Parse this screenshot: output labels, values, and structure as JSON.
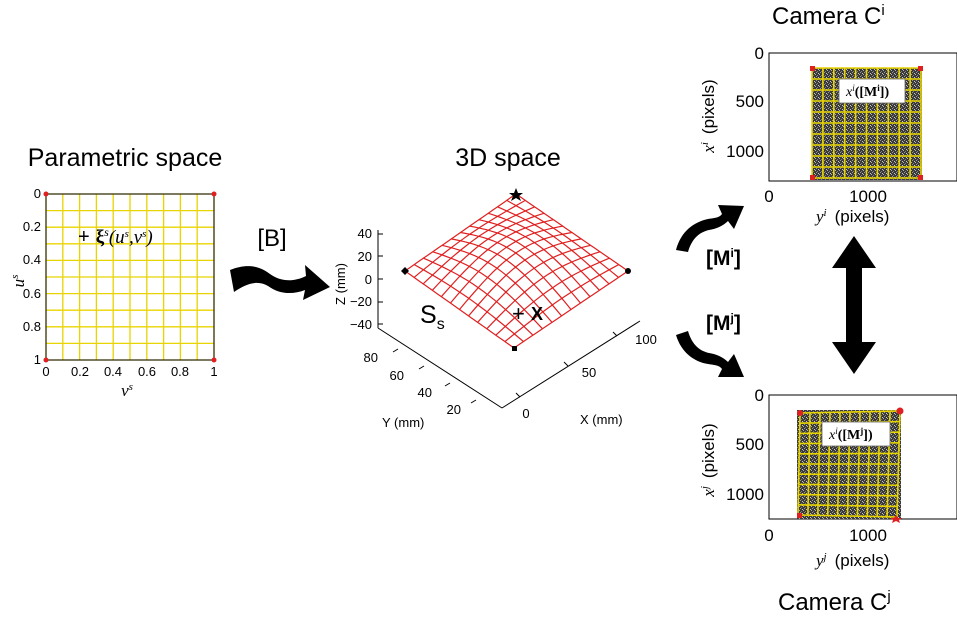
{
  "colors": {
    "grid_yellow": "#e8d400",
    "mesh_red": "#e02020",
    "marker_red": "#e02020",
    "arrow_black": "#000000",
    "camera_bg": "#1a1a1a"
  },
  "titles": {
    "parametric": "Parametric space",
    "space3d": "3D space",
    "camera_i_main": "Camera C",
    "camera_i_sup": "i",
    "camera_j_main": "Camera C",
    "camera_j_sup": "j"
  },
  "parametric": {
    "u_ticks": [
      "0",
      "0.2",
      "0.4",
      "0.6",
      "0.8",
      "1"
    ],
    "v_ticks": [
      "0",
      "0.2",
      "0.4",
      "0.6",
      "0.8",
      "1"
    ],
    "u_label": "u",
    "u_label_sup": "s",
    "v_label": "v",
    "v_label_sup": "s",
    "point_marker": "+",
    "point_xi": "ξ",
    "point_xi_sup": "s",
    "point_args_open": "(u",
    "point_args_mid": ",v",
    "point_args_close": ")",
    "point_args_sup": "s"
  },
  "transforms": {
    "B": "[B]",
    "Mi_main": "[M",
    "Mi_sup": "i",
    "Mi_close": "]",
    "Mj_main": "[M",
    "Mj_sup": "j",
    "Mj_close": "]"
  },
  "space3d": {
    "z_ticks": [
      "40",
      "20",
      "0",
      "−20",
      "−40"
    ],
    "z_label": "Z (mm)",
    "y_ticks": [
      "80",
      "60",
      "40",
      "20"
    ],
    "y_label": "Y (mm)",
    "x_ticks": [
      "0",
      "50",
      "100"
    ],
    "x_label": "X (mm)",
    "surface_main": "S",
    "surface_sub": "s",
    "point_marker": "+",
    "point_label": "X"
  },
  "camera_i": {
    "y_ticks": [
      "0",
      "500",
      "1000"
    ],
    "x_ticks": [
      "0",
      "1000"
    ],
    "ylabel_var": "x",
    "ylabel_sup": "i",
    "ylabel_unit": "(pixels)",
    "xlabel_var": "y",
    "xlabel_sup": "i",
    "xlabel_unit": "(pixels)",
    "inset_var": "x",
    "inset_var_sup": "i",
    "inset_open": "([M",
    "inset_M_sup": "i",
    "inset_close": "])"
  },
  "camera_j": {
    "y_ticks": [
      "0",
      "500",
      "1000"
    ],
    "x_ticks": [
      "0",
      "1000"
    ],
    "ylabel_var": "x",
    "ylabel_sup": "j",
    "ylabel_unit": "(pixels)",
    "xlabel_var": "y",
    "xlabel_sup": "j",
    "xlabel_unit": "(pixels)",
    "inset_var": "x",
    "inset_var_sup": "i",
    "inset_open": "([M",
    "inset_M_sup": "j",
    "inset_close": "])"
  }
}
